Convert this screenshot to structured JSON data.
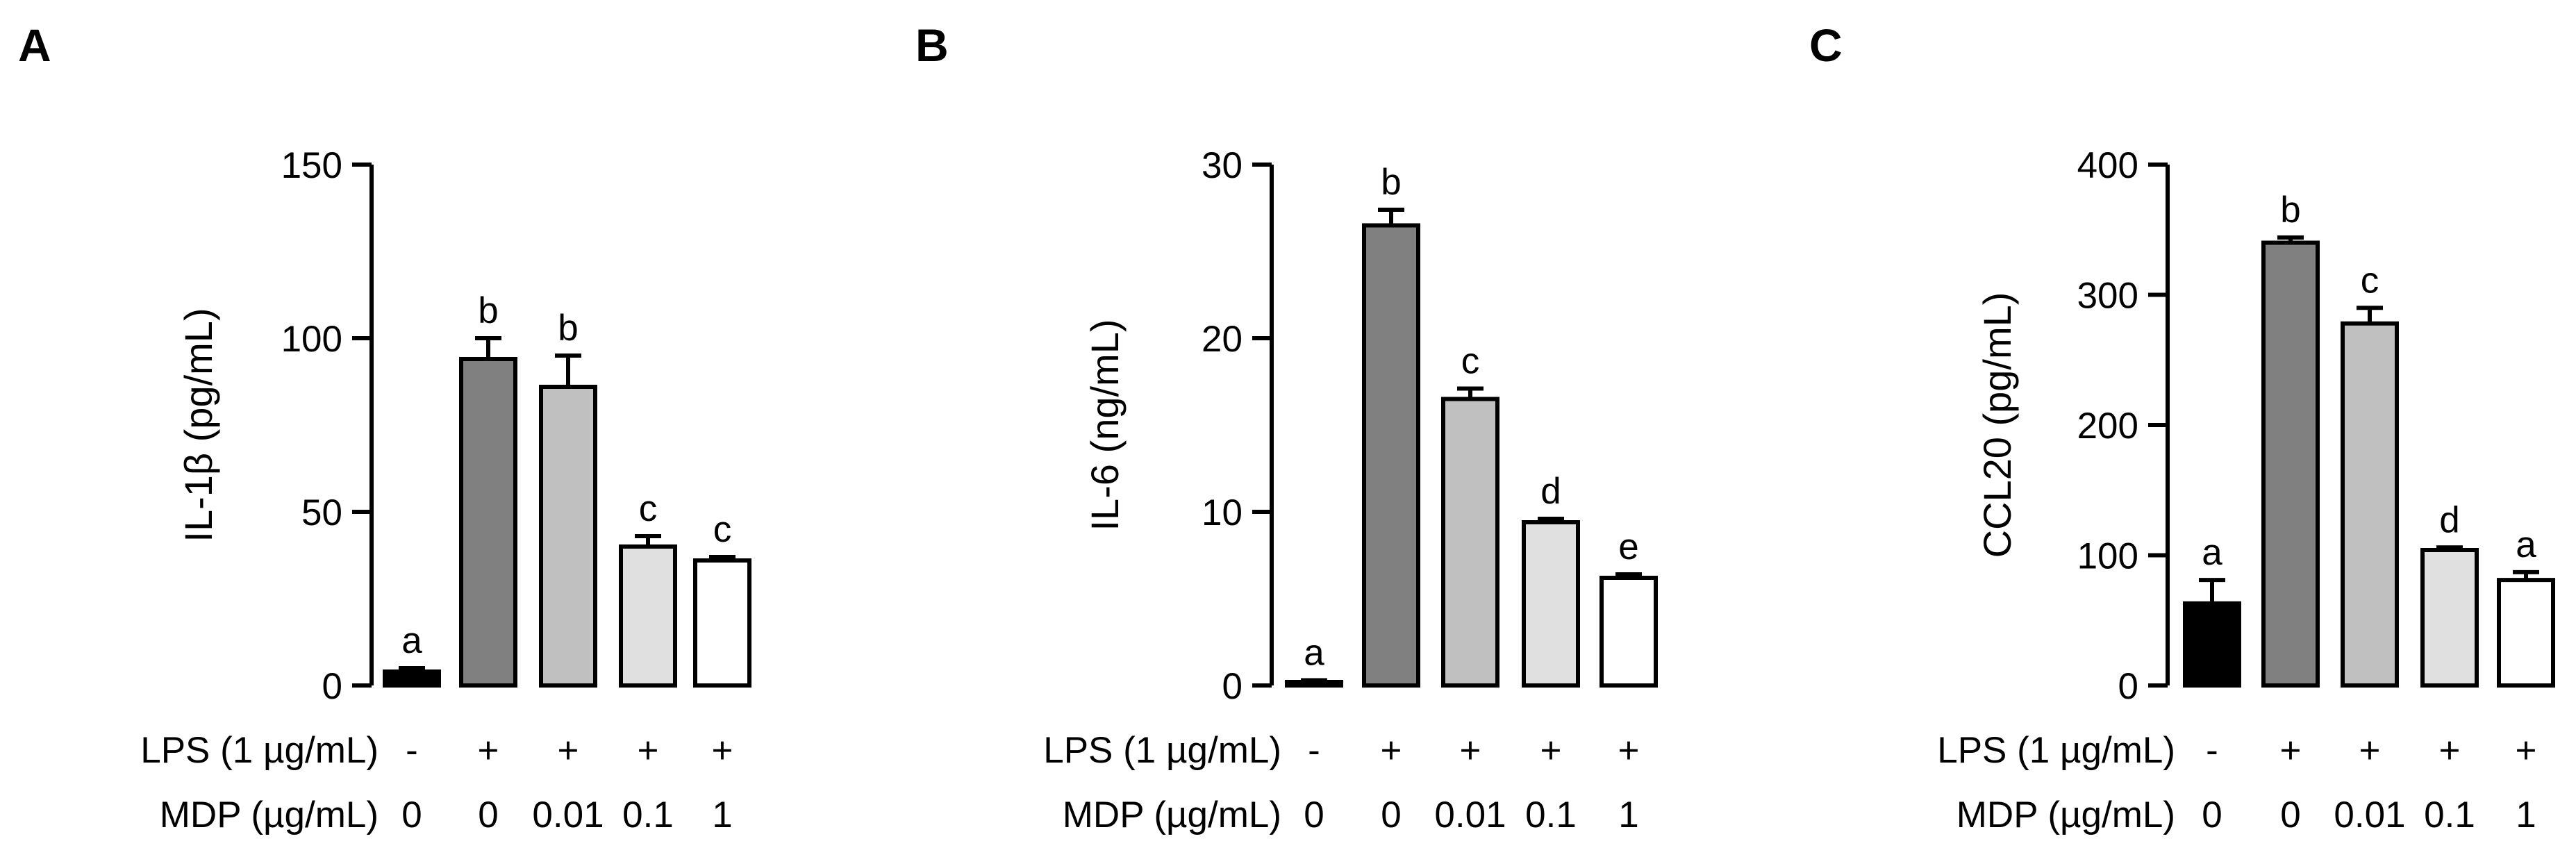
{
  "treatment_labels": {
    "lps": "LPS (1 µg/mL)",
    "mdp": "MDP (µg/mL)"
  },
  "colors": {
    "bar_fills": [
      "#000000",
      "#808080",
      "#c0c0c0",
      "#e0e0e0",
      "#ffffff"
    ],
    "stroke": "#000000"
  },
  "chart_data": [
    {
      "type": "bar",
      "panel": "A",
      "ylabel": "IL-1β (pg/mL)",
      "ylim": [
        0,
        150
      ],
      "yticks": [
        0,
        50,
        100,
        150
      ],
      "lps": [
        "-",
        "+",
        "+",
        "+",
        "+"
      ],
      "mdp": [
        "0",
        "0",
        "0.01",
        "0.1",
        "1"
      ],
      "values": [
        4,
        94,
        86,
        40,
        36
      ],
      "errors": [
        1,
        6,
        9,
        3,
        1
      ],
      "significance": [
        "a",
        "b",
        "b",
        "c",
        "c"
      ]
    },
    {
      "type": "bar",
      "panel": "B",
      "ylabel": "IL-6 (ng/mL)",
      "ylim": [
        0,
        30
      ],
      "yticks": [
        0,
        10,
        20,
        30
      ],
      "lps": [
        "-",
        "+",
        "+",
        "+",
        "+"
      ],
      "mdp": [
        "0",
        "0",
        "0.01",
        "0.1",
        "1"
      ],
      "values": [
        0.2,
        26.5,
        16.5,
        9.4,
        6.2
      ],
      "errors": [
        0.1,
        0.9,
        0.6,
        0.2,
        0.2
      ],
      "significance": [
        "a",
        "b",
        "c",
        "d",
        "e"
      ]
    },
    {
      "type": "bar",
      "panel": "C",
      "ylabel": "CCL20 (pg/mL)",
      "ylim": [
        0,
        400
      ],
      "yticks": [
        0,
        100,
        200,
        300,
        400
      ],
      "lps": [
        "-",
        "+",
        "+",
        "+",
        "+"
      ],
      "mdp": [
        "0",
        "0",
        "0.01",
        "0.1",
        "1"
      ],
      "values": [
        63,
        340,
        278,
        104,
        81
      ],
      "errors": [
        18,
        4,
        12,
        2,
        6
      ],
      "significance": [
        "a",
        "b",
        "c",
        "d",
        "a"
      ]
    }
  ]
}
